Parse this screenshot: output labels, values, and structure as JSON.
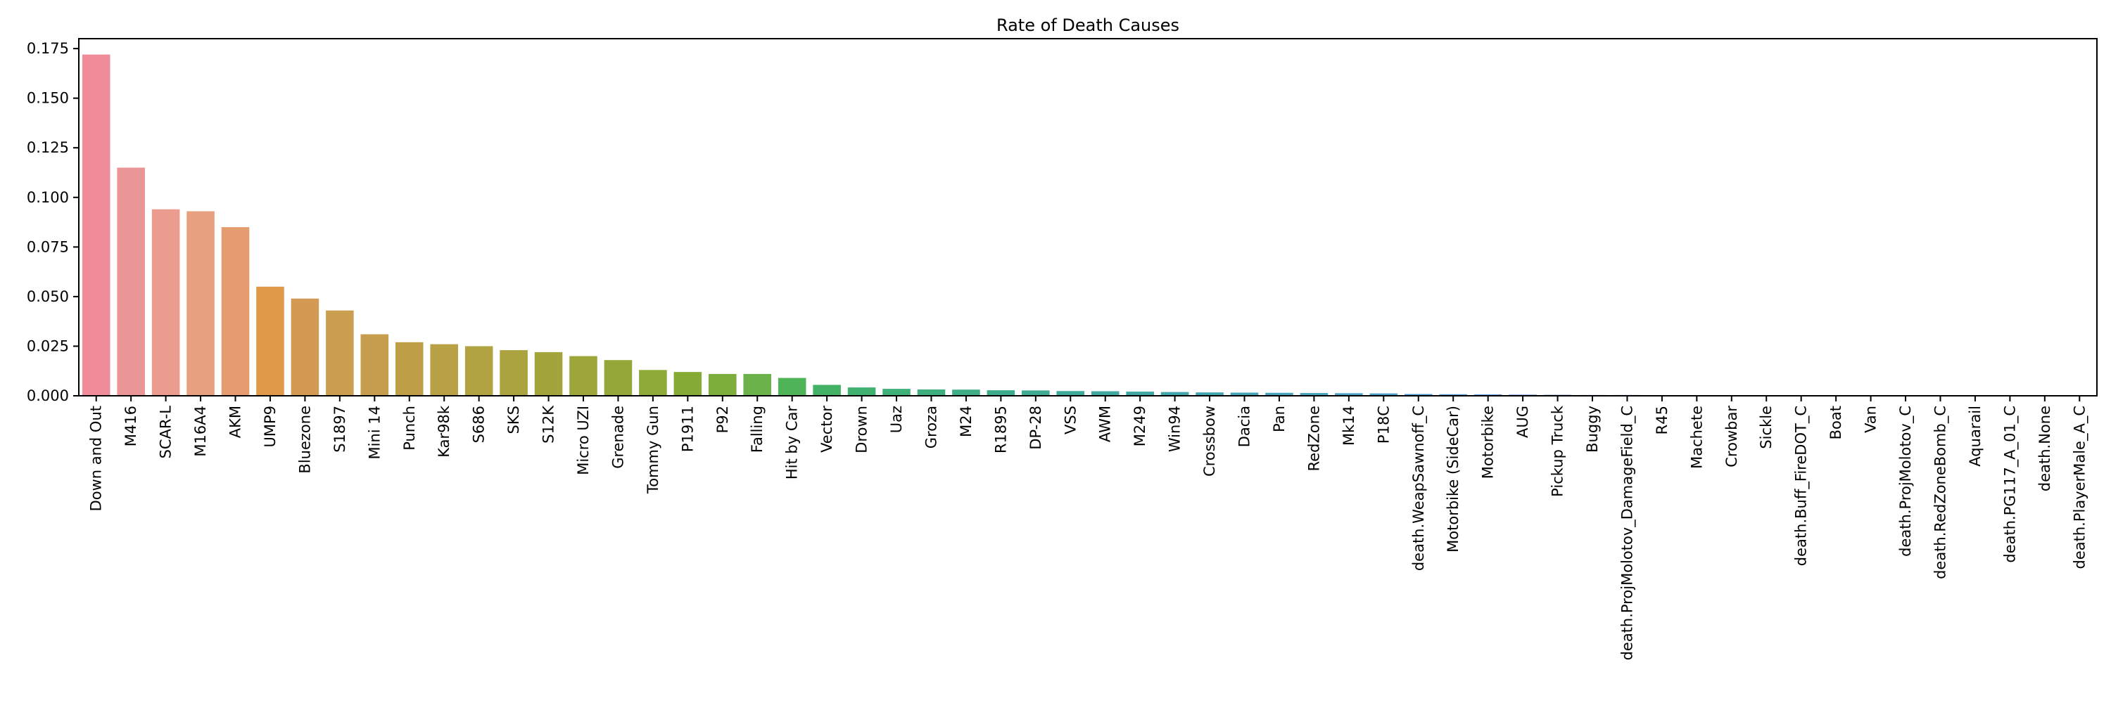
{
  "chart_data": {
    "type": "bar",
    "title": "Rate of Death Causes",
    "xlabel": "",
    "ylabel": "",
    "ylim": [
      0,
      0.18
    ],
    "yticks": [
      "0.000",
      "0.025",
      "0.050",
      "0.075",
      "0.100",
      "0.125",
      "0.150",
      "0.175"
    ],
    "grid": false,
    "categories": [
      "Down and Out",
      "M416",
      "SCAR-L",
      "M16A4",
      "AKM",
      "UMP9",
      "Bluezone",
      "S1897",
      "Mini 14",
      "Punch",
      "Kar98k",
      "S686",
      "SKS",
      "S12K",
      "Micro UZI",
      "Grenade",
      "Tommy Gun",
      "P1911",
      "P92",
      "Falling",
      "Hit by Car",
      "Vector",
      "Drown",
      "Uaz",
      "Groza",
      "M24",
      "R1895",
      "DP-28",
      "VSS",
      "AWM",
      "M249",
      "Win94",
      "Crossbow",
      "Dacia",
      "Pan",
      "RedZone",
      "Mk14",
      "P18C",
      "death.WeapSawnoff_C",
      "Motorbike (SideCar)",
      "Motorbike",
      "AUG",
      "Pickup Truck",
      "Buggy",
      "death.ProjMolotov_DamageField_C",
      "R45",
      "Machete",
      "Crowbar",
      "Sickle",
      "death.Buff_FireDOT_C",
      "Boat",
      "Van",
      "death.ProjMolotov_C",
      "death.RedZoneBomb_C",
      "Aquarail",
      "death.PG117_A_01_C",
      "death.None",
      "death.PlayerMale_A_C"
    ],
    "values": [
      0.172,
      0.115,
      0.094,
      0.093,
      0.085,
      0.055,
      0.049,
      0.043,
      0.031,
      0.027,
      0.026,
      0.025,
      0.023,
      0.022,
      0.02,
      0.018,
      0.013,
      0.012,
      0.011,
      0.011,
      0.009,
      0.0055,
      0.0042,
      0.0035,
      0.0032,
      0.0031,
      0.0028,
      0.0027,
      0.0024,
      0.0023,
      0.0021,
      0.0019,
      0.0017,
      0.0016,
      0.0015,
      0.0014,
      0.0013,
      0.0012,
      0.0009,
      0.0008,
      0.0007,
      0.0006,
      0.0005,
      0.0004,
      0.0004,
      0.0003,
      0.0002,
      0.0001,
      0.0001,
      8e-05,
      6e-05,
      5e-05,
      4e-05,
      3e-05,
      2e-05,
      1e-05,
      1e-05,
      5e-06
    ],
    "colors": [
      "#f08c9a",
      "#ea9596",
      "#eb9c8f",
      "#e6a07d",
      "#e59c6f",
      "#e09849",
      "#d39a54",
      "#cb9e50",
      "#c59d4c",
      "#bf9e48",
      "#b8a044",
      "#b1a242",
      "#aba33f",
      "#a4a43d",
      "#9da53b",
      "#95a738",
      "#8da936",
      "#85ab35",
      "#7dad3a",
      "#6bb24a",
      "#4fb457",
      "#44b266",
      "#40b16f",
      "#3fb077",
      "#3eae7f",
      "#3dad86",
      "#3dac8d",
      "#3eab93",
      "#3eaa99",
      "#3fa99f",
      "#40a8a4",
      "#41a7aa",
      "#42a6af",
      "#43a5b5",
      "#45a4ba",
      "#47a3c0",
      "#49a2c6",
      "#4ba0cc",
      "#4e9ed3",
      "#549cda",
      "#5d99e0",
      "#6795e5",
      "#7391e9",
      "#808cec",
      "#8d87ee",
      "#9982ef",
      "#a57df0",
      "#b078ef",
      "#bb73ed",
      "#c56fe9",
      "#cf6ce4",
      "#d86adf",
      "#df69d8",
      "#e56ad1",
      "#ea6cc9",
      "#ee6fc1",
      "#f073b7",
      "#f279ae"
    ]
  }
}
